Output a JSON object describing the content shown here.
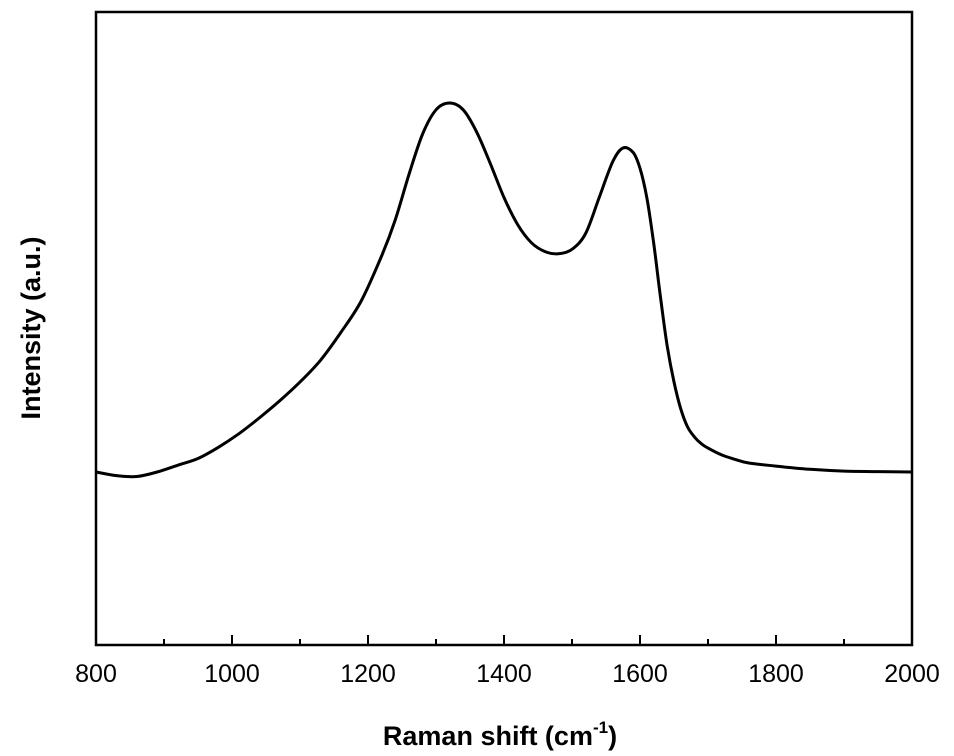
{
  "chart_data": {
    "type": "line",
    "title": "",
    "xlabel": "Raman shift (cm",
    "xlabel_sup": "-1",
    "xlabel_close": ")",
    "ylabel": "Intensity (a.u.)",
    "xlim": [
      800,
      2000
    ],
    "ylim": [
      0,
      1
    ],
    "x_ticks": [
      800,
      1000,
      1200,
      1400,
      1600,
      1800,
      2000
    ],
    "x_tick_labels": [
      "800",
      "1000",
      "1200",
      "1400",
      "1600",
      "1800",
      "2000"
    ],
    "x_minor_step": 100,
    "y_tick_labels": [],
    "grid": false,
    "legend": "none",
    "line_color": "#000000",
    "series": [
      {
        "x": [
          800,
          830,
          860,
          890,
          920,
          950,
          980,
          1010,
          1040,
          1070,
          1100,
          1130,
          1160,
          1190,
          1220,
          1240,
          1260,
          1280,
          1300,
          1320,
          1340,
          1360,
          1380,
          1400,
          1420,
          1440,
          1460,
          1480,
          1500,
          1520,
          1540,
          1560,
          1575,
          1590,
          1600,
          1610,
          1620,
          1630,
          1640,
          1650,
          1660,
          1670,
          1680,
          1690,
          1700,
          1720,
          1740,
          1760,
          1800,
          1850,
          1900,
          1950,
          2000
        ],
        "y": [
          0.18,
          0.172,
          0.17,
          0.18,
          0.195,
          0.21,
          0.235,
          0.265,
          0.3,
          0.338,
          0.38,
          0.428,
          0.49,
          0.56,
          0.66,
          0.74,
          0.84,
          0.93,
          0.985,
          1.0,
          0.985,
          0.935,
          0.865,
          0.79,
          0.73,
          0.69,
          0.67,
          0.665,
          0.675,
          0.71,
          0.79,
          0.87,
          0.9,
          0.89,
          0.855,
          0.79,
          0.69,
          0.57,
          0.46,
          0.38,
          0.32,
          0.28,
          0.258,
          0.243,
          0.233,
          0.218,
          0.208,
          0.2,
          0.193,
          0.186,
          0.182,
          0.181,
          0.18
        ]
      }
    ]
  }
}
